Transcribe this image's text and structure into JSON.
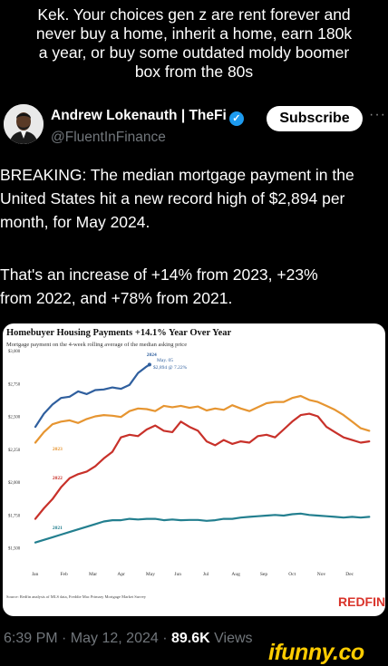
{
  "caption": [
    "Kek. Your choices gen z are rent forever and",
    "never buy a home, inherit a home, earn 180k",
    "a year, or buy some outdated moldy boomer",
    "box from the 80s"
  ],
  "tweet": {
    "author_name": "Andrew Lokenauth | TheFi",
    "verified_icon": "verified-badge-icon",
    "handle": "@FluentInFinance",
    "subscribe_label": "Subscribe",
    "more_icon": "more-options-icon",
    "body_lines": [
      "BREAKING: The median mortgage payment in the",
      "United States hit a new record high of $2,894 per",
      "month, for May 2024.",
      "That's an increase of +14% from 2023, +23%",
      "from 2022, and +78% from 2021."
    ],
    "timestamp": "6:39 PM · May 12, 2024 · ",
    "views_count": "89.6K",
    "views_label": " Views"
  },
  "watermark": "ifunny.co",
  "colors": {
    "background": "#000000",
    "verified": "#1d9bf0",
    "watermark": "#ffcc00",
    "redfin": "#d9342b"
  },
  "chart_data": {
    "type": "line",
    "title": "Homebuyer Housing Payments +14.1% Year Over Year",
    "subtitle": "Mortgage payment on the 4-week rolling average of the median asking price",
    "yticks": [
      "$3,000",
      "$2,750",
      "$2,500",
      "$2,250",
      "$2,000",
      "$1,750",
      "$1,500"
    ],
    "ylim": [
      1400,
      3000
    ],
    "xticks": [
      "Jan",
      "Feb",
      "Mar",
      "Apr",
      "May",
      "Jun",
      "Jul",
      "Aug",
      "Sep",
      "Oct",
      "Nov",
      "Dec"
    ],
    "annotation": [
      "May. 05",
      "$2,894 @ 7.22%"
    ],
    "source": "Source: Redfin analysis of MLS data, Freddie Mac Primary Mortgage Market Survey",
    "brand": "REDFIN",
    "grid": false,
    "series": [
      {
        "name": "2024",
        "color": "#2f5f9e",
        "label_pos": [
          3.9,
          2960
        ],
        "x": [
          0,
          0.3,
          0.6,
          0.9,
          1.2,
          1.5,
          1.8,
          2.1,
          2.4,
          2.7,
          3.0,
          3.3,
          3.6,
          3.9,
          4.0
        ],
        "values": [
          2420,
          2520,
          2590,
          2640,
          2650,
          2690,
          2670,
          2700,
          2705,
          2720,
          2710,
          2740,
          2830,
          2880,
          2894
        ]
      },
      {
        "name": "2023",
        "color": "#e69531",
        "label_pos": [
          0.6,
          2240
        ],
        "x": [
          0,
          0.3,
          0.6,
          0.9,
          1.2,
          1.5,
          1.8,
          2.1,
          2.4,
          2.7,
          3.0,
          3.3,
          3.6,
          3.9,
          4.2,
          4.5,
          4.8,
          5.1,
          5.4,
          5.7,
          6.0,
          6.3,
          6.6,
          6.9,
          7.2,
          7.5,
          7.8,
          8.1,
          8.4,
          8.7,
          9.0,
          9.3,
          9.6,
          9.9,
          10.2,
          10.5,
          10.8,
          11.1,
          11.4,
          11.7
        ],
        "values": [
          2300,
          2380,
          2440,
          2460,
          2470,
          2450,
          2480,
          2500,
          2510,
          2505,
          2495,
          2540,
          2560,
          2555,
          2540,
          2580,
          2570,
          2580,
          2565,
          2575,
          2545,
          2560,
          2550,
          2585,
          2560,
          2540,
          2570,
          2600,
          2610,
          2610,
          2640,
          2655,
          2625,
          2610,
          2580,
          2550,
          2510,
          2460,
          2410,
          2390
        ]
      },
      {
        "name": "2022",
        "color": "#c8312a",
        "label_pos": [
          0.6,
          2020
        ],
        "x": [
          0,
          0.3,
          0.6,
          0.9,
          1.2,
          1.5,
          1.8,
          2.1,
          2.4,
          2.7,
          3.0,
          3.3,
          3.6,
          3.9,
          4.2,
          4.5,
          4.8,
          5.1,
          5.4,
          5.7,
          6.0,
          6.3,
          6.6,
          6.9,
          7.2,
          7.5,
          7.8,
          8.1,
          8.4,
          8.7,
          9.0,
          9.3,
          9.6,
          9.9,
          10.2,
          10.5,
          10.8,
          11.1,
          11.4,
          11.7
        ],
        "values": [
          1720,
          1800,
          1870,
          1960,
          2030,
          2060,
          2080,
          2120,
          2180,
          2230,
          2340,
          2360,
          2350,
          2400,
          2430,
          2390,
          2380,
          2460,
          2420,
          2390,
          2310,
          2280,
          2320,
          2290,
          2310,
          2300,
          2350,
          2360,
          2340,
          2400,
          2460,
          2510,
          2520,
          2500,
          2420,
          2380,
          2340,
          2320,
          2300,
          2310
        ]
      },
      {
        "name": "2021",
        "color": "#237f8f",
        "label_pos": [
          0.6,
          1640
        ],
        "x": [
          0,
          0.3,
          0.6,
          0.9,
          1.2,
          1.5,
          1.8,
          2.1,
          2.4,
          2.7,
          3.0,
          3.3,
          3.6,
          3.9,
          4.2,
          4.5,
          4.8,
          5.1,
          5.4,
          5.7,
          6.0,
          6.3,
          6.6,
          6.9,
          7.2,
          7.5,
          7.8,
          8.1,
          8.4,
          8.7,
          9.0,
          9.3,
          9.6,
          9.9,
          10.2,
          10.5,
          10.8,
          11.1,
          11.4,
          11.7
        ],
        "values": [
          1540,
          1560,
          1580,
          1600,
          1620,
          1640,
          1660,
          1680,
          1700,
          1710,
          1710,
          1720,
          1715,
          1720,
          1720,
          1710,
          1715,
          1710,
          1712,
          1712,
          1705,
          1710,
          1720,
          1720,
          1730,
          1735,
          1740,
          1745,
          1750,
          1745,
          1755,
          1760,
          1750,
          1745,
          1740,
          1735,
          1730,
          1735,
          1730,
          1735
        ]
      }
    ]
  }
}
